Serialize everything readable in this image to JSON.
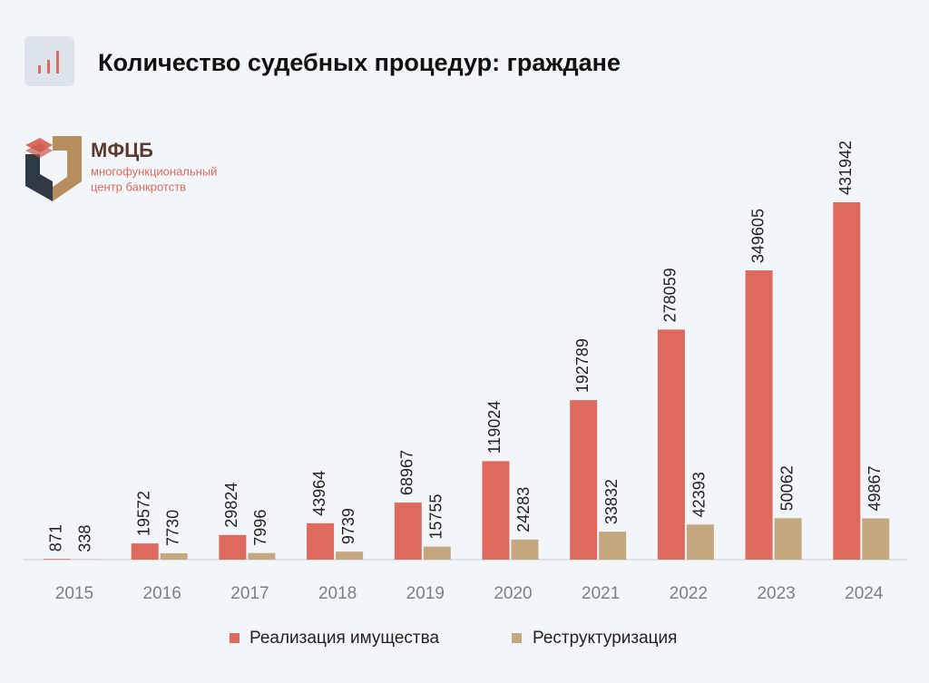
{
  "chart_data": {
    "type": "bar",
    "title": "Количество судебных процедур: граждане",
    "categories": [
      "2015",
      "2016",
      "2017",
      "2018",
      "2019",
      "2020",
      "2021",
      "2022",
      "2023",
      "2024"
    ],
    "series": [
      {
        "name": "Реализация имущества",
        "color": "#dd6a5c",
        "values": [
          871,
          19572,
          29824,
          43964,
          68967,
          119024,
          192789,
          278059,
          349605,
          431942
        ]
      },
      {
        "name": "Реструктуризация",
        "color": "#c4a67f",
        "values": [
          338,
          7730,
          7996,
          9739,
          15755,
          24283,
          33832,
          42393,
          50062,
          49867
        ]
      }
    ],
    "legend": "bottom"
  },
  "logo": {
    "name": "МФЦБ",
    "line1": "многофункциональный",
    "line2": "центр банкротств"
  }
}
